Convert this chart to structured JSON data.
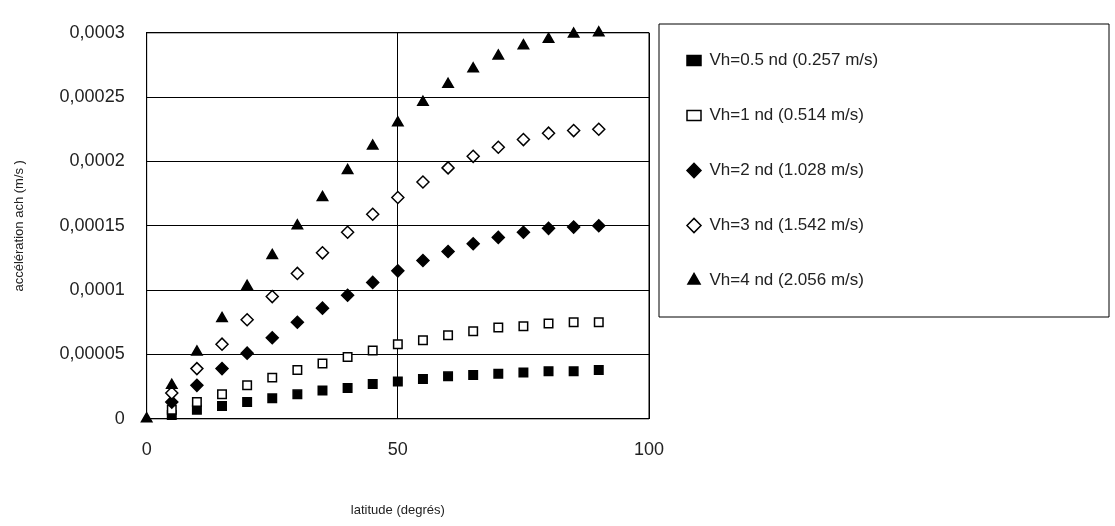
{
  "chart_data": {
    "type": "scatter",
    "xlabel": "latitude (degrés)",
    "ylabel": "accélération ach (m/s )",
    "x": [
      0,
      5,
      10,
      15,
      20,
      25,
      30,
      35,
      40,
      45,
      50,
      55,
      60,
      65,
      70,
      75,
      80,
      85,
      90
    ],
    "xlim": [
      0,
      100
    ],
    "xticks": [
      0,
      50,
      100
    ],
    "ylim": [
      0,
      0.0003
    ],
    "yticks": [
      {
        "value": 0,
        "label": "0"
      },
      {
        "value": 5e-05,
        "label": "0,00005"
      },
      {
        "value": 0.0001,
        "label": "0,0001"
      },
      {
        "value": 0.00015,
        "label": "0,00015"
      },
      {
        "value": 0.0002,
        "label": "0,0002"
      },
      {
        "value": 0.00025,
        "label": "0,00025"
      },
      {
        "value": 0.0003,
        "label": "0,0003"
      }
    ],
    "grid": true,
    "legend": "right",
    "series": [
      {
        "name": "Vh=0.5 nd (0.257 m/s)",
        "color": "#000000",
        "marker": "square",
        "values": [
          null,
          3e-06,
          7e-06,
          1e-05,
          1.3e-05,
          1.6e-05,
          1.9e-05,
          2.2e-05,
          2.4e-05,
          2.7e-05,
          2.9e-05,
          3.1e-05,
          3.3e-05,
          3.4e-05,
          3.5e-05,
          3.6e-05,
          3.7e-05,
          3.7e-05,
          3.8e-05
        ]
      },
      {
        "name": "Vh=1 nd (0.514 m/s)",
        "color": "#000000",
        "marker": "square",
        "values": [
          null,
          7e-06,
          1.3e-05,
          1.9e-05,
          2.6e-05,
          3.2e-05,
          3.8e-05,
          4.3e-05,
          4.8e-05,
          5.3e-05,
          5.8e-05,
          6.1e-05,
          6.5e-05,
          6.8e-05,
          7.1e-05,
          7.2e-05,
          7.4e-05,
          7.5e-05,
          7.5e-05
        ]
      },
      {
        "name": "Vh=2 nd (1.028 m/s)",
        "color": "#000000",
        "marker": "diamond",
        "values": [
          null,
          1.3e-05,
          2.6e-05,
          3.9e-05,
          5.1e-05,
          6.3e-05,
          7.5e-05,
          8.6e-05,
          9.6e-05,
          0.000106,
          0.000115,
          0.000123,
          0.00013,
          0.000136,
          0.000141,
          0.000145,
          0.000148,
          0.000149,
          0.00015
        ]
      },
      {
        "name": "Vh=3 nd (1.542 m/s)",
        "color": "#000000",
        "marker": "diamond",
        "values": [
          null,
          2e-05,
          3.9e-05,
          5.8e-05,
          7.7e-05,
          9.5e-05,
          0.000113,
          0.000129,
          0.000145,
          0.000159,
          0.000172,
          0.000184,
          0.000195,
          0.000204,
          0.000211,
          0.000217,
          0.000222,
          0.000224,
          0.000225
        ]
      },
      {
        "name": "Vh=4 nd (2.056 m/s)",
        "color": "#000000",
        "marker": "triangle",
        "values": [
          0,
          2.6e-05,
          5.2e-05,
          7.8e-05,
          0.000103,
          0.000127,
          0.00015,
          0.000172,
          0.000193,
          0.000212,
          0.00023,
          0.000246,
          0.00026,
          0.000272,
          0.000282,
          0.00029,
          0.000295,
          0.000299,
          0.0003
        ]
      }
    ]
  }
}
